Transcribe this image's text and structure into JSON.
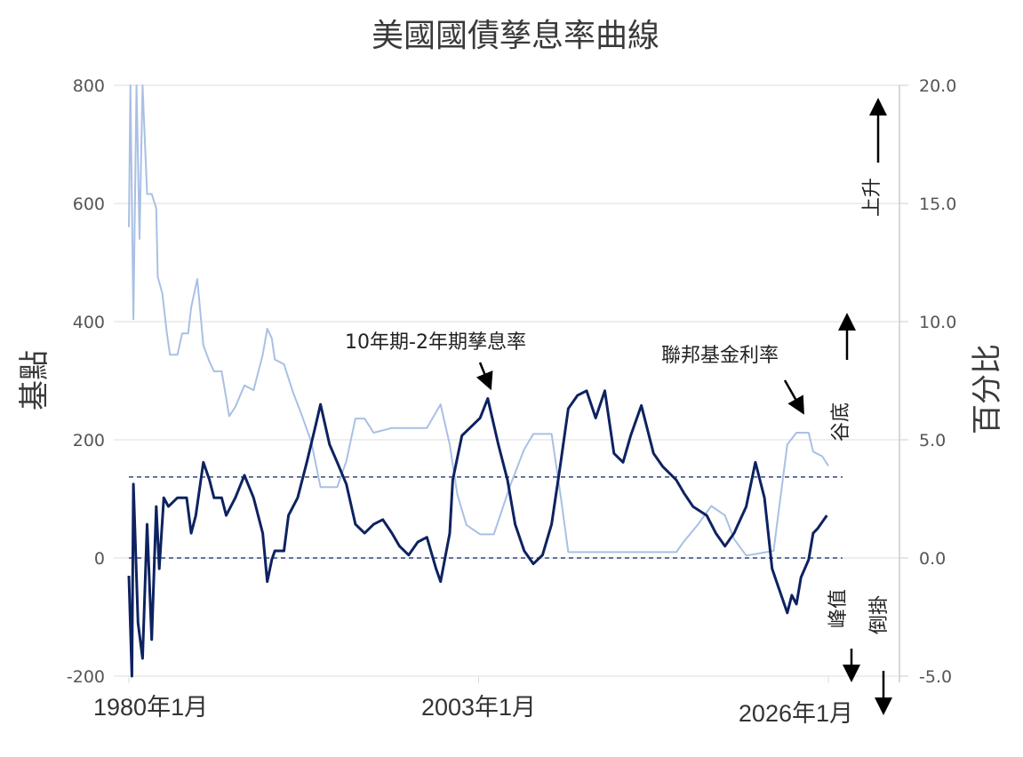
{
  "chart_data": {
    "type": "line",
    "title": "美國國債孳息率曲線",
    "ylabel_left": "基點",
    "ylabel_right": "百分比",
    "ylim_left": [
      -200,
      800
    ],
    "ylim_right": [
      -5.0,
      20.0
    ],
    "yticks_left": [
      "800",
      "600",
      "400",
      "200",
      "0",
      "-200"
    ],
    "yticks_right": [
      "20.0",
      "15.0",
      "10.0",
      "5.0",
      "0.0",
      "-5.0"
    ],
    "xlim": [
      1980,
      2026
    ],
    "xticks": [
      {
        "year": 1980,
        "label": "1980年1月"
      },
      {
        "year": 2003,
        "label": "2003年1月"
      },
      {
        "year": 2026,
        "label": "2026年1月"
      }
    ],
    "grid": true,
    "reference_lines_left_axis": [
      137,
      0
    ],
    "series": [
      {
        "name": "10年期-2年期孳息率",
        "axis": "left",
        "color": "#0d2260",
        "points": [
          [
            1980.0,
            -30
          ],
          [
            1980.2,
            -200
          ],
          [
            1980.3,
            125
          ],
          [
            1980.6,
            -110
          ],
          [
            1980.9,
            -170
          ],
          [
            1981.2,
            57
          ],
          [
            1981.5,
            -138
          ],
          [
            1981.8,
            87
          ],
          [
            1982.0,
            -18
          ],
          [
            1982.3,
            102
          ],
          [
            1982.6,
            87
          ],
          [
            1983.2,
            102
          ],
          [
            1983.8,
            102
          ],
          [
            1984.1,
            42
          ],
          [
            1984.4,
            72
          ],
          [
            1984.9,
            162
          ],
          [
            1985.3,
            132
          ],
          [
            1985.6,
            102
          ],
          [
            1986.1,
            102
          ],
          [
            1986.4,
            72
          ],
          [
            1987.0,
            102
          ],
          [
            1987.6,
            140
          ],
          [
            1988.2,
            102
          ],
          [
            1988.8,
            42
          ],
          [
            1989.1,
            -40
          ],
          [
            1989.4,
            -3
          ],
          [
            1989.6,
            12
          ],
          [
            1990.2,
            12
          ],
          [
            1990.5,
            72
          ],
          [
            1991.1,
            102
          ],
          [
            1991.7,
            162
          ],
          [
            1992.3,
            226
          ],
          [
            1992.6,
            260
          ],
          [
            1993.2,
            192
          ],
          [
            1993.7,
            162
          ],
          [
            1994.3,
            125
          ],
          [
            1994.9,
            57
          ],
          [
            1995.5,
            42
          ],
          [
            1996.1,
            57
          ],
          [
            1996.7,
            65
          ],
          [
            1997.3,
            42
          ],
          [
            1997.8,
            20
          ],
          [
            1998.4,
            5
          ],
          [
            1999.0,
            27
          ],
          [
            1999.6,
            35
          ],
          [
            2000.2,
            -18
          ],
          [
            2000.5,
            -40
          ],
          [
            2001.1,
            42
          ],
          [
            2001.3,
            132
          ],
          [
            2001.9,
            207
          ],
          [
            2002.5,
            222
          ],
          [
            2003.1,
            237
          ],
          [
            2003.6,
            270
          ],
          [
            2004.3,
            192
          ],
          [
            2004.9,
            132
          ],
          [
            2005.4,
            57
          ],
          [
            2006.0,
            12
          ],
          [
            2006.6,
            -10
          ],
          [
            2007.2,
            5
          ],
          [
            2007.8,
            57
          ],
          [
            2008.4,
            162
          ],
          [
            2008.9,
            253
          ],
          [
            2009.5,
            275
          ],
          [
            2010.1,
            283
          ],
          [
            2010.7,
            237
          ],
          [
            2011.3,
            283
          ],
          [
            2011.9,
            177
          ],
          [
            2012.5,
            162
          ],
          [
            2013.0,
            207
          ],
          [
            2013.7,
            258
          ],
          [
            2014.5,
            177
          ],
          [
            2015.1,
            155
          ],
          [
            2016.0,
            132
          ],
          [
            2016.5,
            110
          ],
          [
            2017.1,
            87
          ],
          [
            2018.0,
            72
          ],
          [
            2018.6,
            42
          ],
          [
            2019.2,
            20
          ],
          [
            2019.8,
            42
          ],
          [
            2020.6,
            87
          ],
          [
            2021.2,
            162
          ],
          [
            2021.8,
            102
          ],
          [
            2022.3,
            -18
          ],
          [
            2022.7,
            -48
          ],
          [
            2023.3,
            -93
          ],
          [
            2023.6,
            -63
          ],
          [
            2023.9,
            -78
          ],
          [
            2024.2,
            -33
          ],
          [
            2024.7,
            -3
          ],
          [
            2025.0,
            42
          ],
          [
            2025.3,
            50
          ],
          [
            2025.9,
            72
          ]
        ]
      },
      {
        "name": "聯邦基金利率",
        "axis": "right",
        "color": "#a9c0e4",
        "points": [
          [
            1980.0,
            14.0
          ],
          [
            1980.1,
            20
          ],
          [
            1980.3,
            10.1
          ],
          [
            1980.5,
            20
          ],
          [
            1980.7,
            13.5
          ],
          [
            1980.9,
            20
          ],
          [
            1981.2,
            15.4
          ],
          [
            1981.5,
            15.4
          ],
          [
            1981.8,
            14.8
          ],
          [
            1981.9,
            11.9
          ],
          [
            1982.2,
            11.2
          ],
          [
            1982.5,
            9.5
          ],
          [
            1982.7,
            8.6
          ],
          [
            1983.2,
            8.6
          ],
          [
            1983.5,
            9.5
          ],
          [
            1983.9,
            9.5
          ],
          [
            1984.1,
            10.6
          ],
          [
            1984.5,
            11.8
          ],
          [
            1984.9,
            9.0
          ],
          [
            1985.3,
            8.3
          ],
          [
            1985.6,
            7.9
          ],
          [
            1986.1,
            7.9
          ],
          [
            1986.6,
            6.0
          ],
          [
            1987.0,
            6.4
          ],
          [
            1987.6,
            7.3
          ],
          [
            1988.2,
            7.1
          ],
          [
            1988.8,
            8.6
          ],
          [
            1989.1,
            9.7
          ],
          [
            1989.4,
            9.3
          ],
          [
            1989.6,
            8.4
          ],
          [
            1990.2,
            8.2
          ],
          [
            1990.8,
            7.0
          ],
          [
            1991.4,
            6.0
          ],
          [
            1992.0,
            4.9
          ],
          [
            1992.6,
            3.0
          ],
          [
            1993.7,
            3.0
          ],
          [
            1994.3,
            4.1
          ],
          [
            1994.9,
            5.9
          ],
          [
            1995.5,
            5.9
          ],
          [
            1996.1,
            5.3
          ],
          [
            1997.3,
            5.5
          ],
          [
            1998.4,
            5.5
          ],
          [
            1999.6,
            5.5
          ],
          [
            2000.5,
            6.5
          ],
          [
            2001.1,
            4.8
          ],
          [
            2001.6,
            2.7
          ],
          [
            2002.2,
            1.4
          ],
          [
            2003.1,
            1.0
          ],
          [
            2004.0,
            1.0
          ],
          [
            2005.1,
            3.1
          ],
          [
            2006.0,
            4.6
          ],
          [
            2006.6,
            5.25
          ],
          [
            2007.8,
            5.25
          ],
          [
            2008.4,
            2.6
          ],
          [
            2008.9,
            0.25
          ],
          [
            2016.0,
            0.25
          ],
          [
            2016.5,
            0.7
          ],
          [
            2017.4,
            1.4
          ],
          [
            2018.3,
            2.2
          ],
          [
            2019.2,
            1.8
          ],
          [
            2019.8,
            0.8
          ],
          [
            2020.6,
            0.1
          ],
          [
            2022.4,
            0.3
          ],
          [
            2022.7,
            1.8
          ],
          [
            2023.3,
            4.8
          ],
          [
            2023.9,
            5.3
          ],
          [
            2024.7,
            5.3
          ],
          [
            2025.0,
            4.5
          ],
          [
            2025.6,
            4.3
          ],
          [
            2026.0,
            3.9
          ]
        ]
      }
    ],
    "annotations": {
      "rise": "上升",
      "trough": "谷底",
      "peak": "峰值",
      "inversion": "倒掛"
    }
  }
}
